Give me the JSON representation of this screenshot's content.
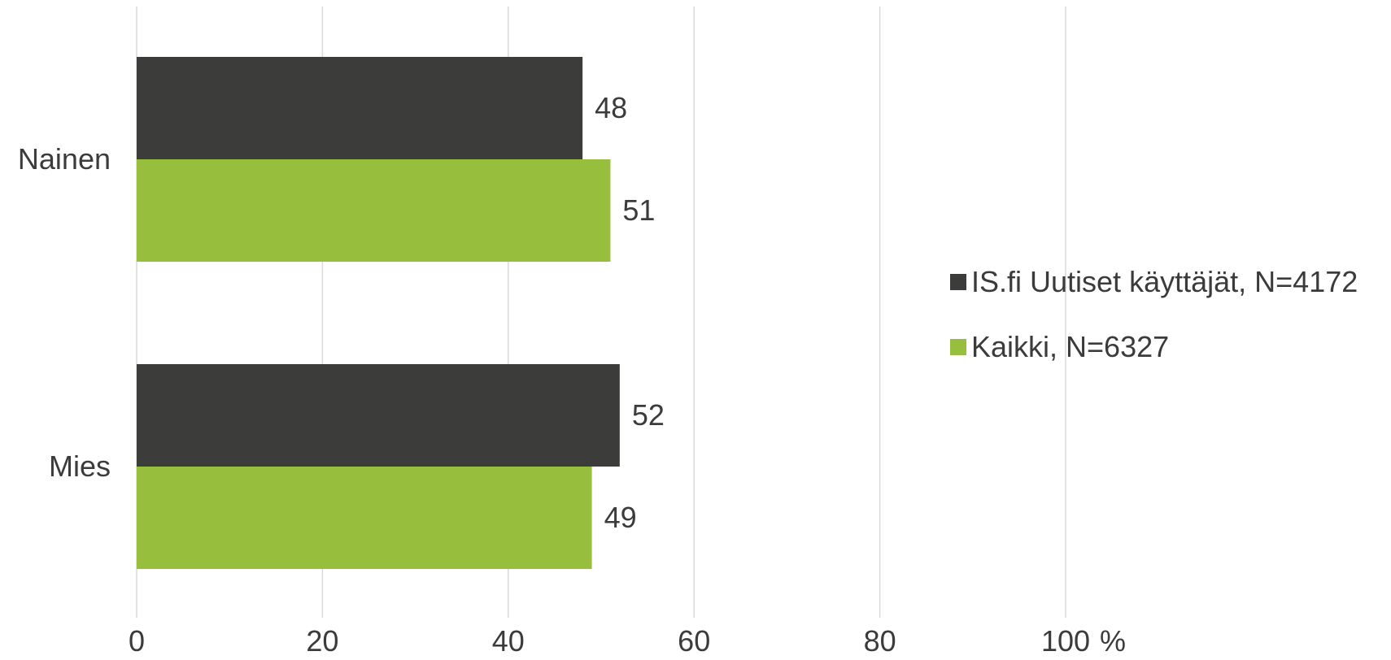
{
  "chart_data": {
    "type": "bar",
    "orientation": "horizontal",
    "categories": [
      "Nainen",
      "Mies"
    ],
    "series": [
      {
        "name": "IS.fi Uutiset käyttäjät, N=4172",
        "color": "#3c3c3b",
        "values": [
          48,
          52
        ]
      },
      {
        "name": "Kaikki, N=6327",
        "color": "#97be3d",
        "values": [
          51,
          49
        ]
      }
    ],
    "xlim": [
      0,
      100
    ],
    "xticks": [
      0,
      20,
      40,
      60,
      80,
      100
    ],
    "xtick_labels": [
      "0",
      "20",
      "40",
      "60",
      "80",
      "100"
    ],
    "xunit": "%",
    "grid": true,
    "legend_position": "right",
    "data_labels": true
  }
}
